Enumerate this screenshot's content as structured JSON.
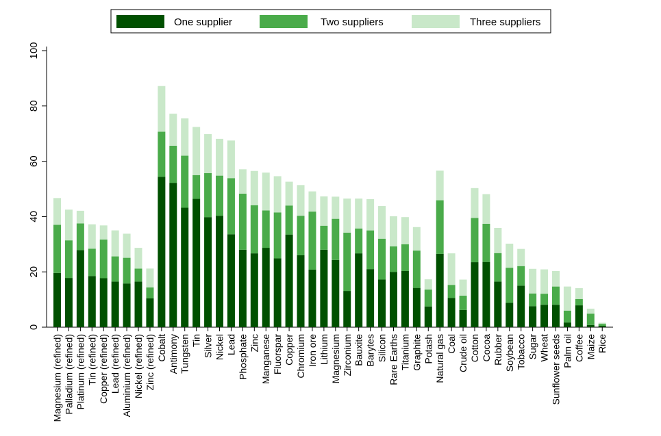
{
  "chart_data": {
    "type": "stacked-bar",
    "title": "",
    "xlabel": "",
    "ylabel": "",
    "ylim": [
      0,
      100
    ],
    "yticks": [
      0,
      20,
      40,
      60,
      80,
      100
    ],
    "legend_position": "top",
    "categories": [
      "Magnesium (refined)",
      "Palladium (refined)",
      "Platinum (refined)",
      "Tin (refined)",
      "Copper (refined)",
      "Lead (refined)",
      "Aluminium (refined)",
      "Nickel (refined)",
      "Zinc (refined)",
      "Cobalt",
      "Antimony",
      "Tungsten",
      "Tin",
      "Silver",
      "Nickel",
      "Lead",
      "Phosphate",
      "Zinc",
      "Manganese",
      "Fluorspar",
      "Copper",
      "Chromium",
      "Iron ore",
      "Lithium",
      "Magnesium",
      "Zirconium",
      "Bauxite",
      "Barytes",
      "Silicon",
      "Rare Earths",
      "Titanium",
      "Graphite",
      "Potash",
      "Natural gas",
      "Coal",
      "Crude oil",
      "Cotton",
      "Cocoa",
      "Rubber",
      "Soybean",
      "Tobacco",
      "Sugar",
      "Wheat",
      "Sunflower seeds",
      "Palm oil",
      "Coffee",
      "Maize",
      "Rice"
    ],
    "series": [
      {
        "name": "One supplier",
        "color": "#005000",
        "values": [
          19.6,
          17.8,
          27.9,
          18.5,
          17.7,
          16.5,
          15.8,
          16.5,
          10.4,
          54.4,
          52.2,
          43.2,
          46.4,
          39.8,
          40.3,
          33.6,
          28,
          26.7,
          28.7,
          24.9,
          33.5,
          26,
          20.8,
          28,
          24.3,
          13.1,
          26.7,
          21,
          17.2,
          20,
          20.3,
          14.2,
          7.5,
          26.5,
          10.6,
          6.2,
          23.5,
          23.6,
          16.5,
          8.8,
          15,
          7.6,
          8.1,
          8.1,
          1.7,
          7.9,
          0.8,
          0.5
        ]
      },
      {
        "name": "Two suppliers",
        "color": "#4aab4a",
        "values": [
          17.4,
          13.6,
          9.6,
          9.9,
          14,
          9.1,
          9.3,
          4.7,
          4,
          16.3,
          13.4,
          18.8,
          8.6,
          15.9,
          14.5,
          20.3,
          20.3,
          17.4,
          13.5,
          16.6,
          10.5,
          14.3,
          21,
          8.7,
          14.9,
          21.1,
          9,
          14,
          14.8,
          9.2,
          9.7,
          13.5,
          6.1,
          19.4,
          4.7,
          5.2,
          16,
          13.8,
          10.3,
          12.7,
          7.1,
          4.6,
          4,
          6.6,
          4.3,
          2.3,
          4.1,
          0.7
        ]
      },
      {
        "name": "Three suppliers",
        "color": "#c9e8c9",
        "values": [
          9.7,
          11.1,
          4.6,
          8.8,
          5.1,
          9.4,
          8.7,
          7.5,
          6.8,
          16.5,
          11.6,
          13.5,
          17.4,
          14.1,
          13.3,
          13.6,
          8.8,
          12.4,
          13.7,
          13.1,
          8.6,
          11.1,
          7.3,
          10.6,
          8,
          12.3,
          10.8,
          11.3,
          11.8,
          10.9,
          9.8,
          8.5,
          3.7,
          10.7,
          11.4,
          5.8,
          10.8,
          10.7,
          9.1,
          8.7,
          6.2,
          8.9,
          8.8,
          5.6,
          8.7,
          3.9,
          1.8,
          0.4
        ]
      }
    ]
  }
}
